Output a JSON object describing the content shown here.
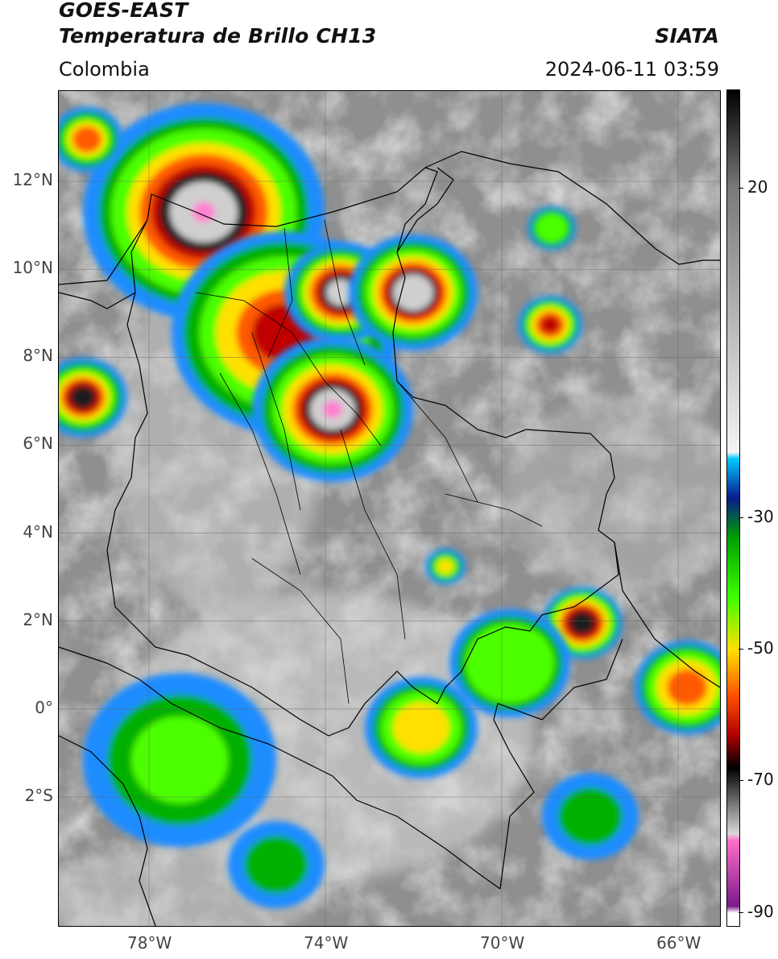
{
  "header": {
    "title_line1": "GOES-EAST",
    "title_line2": "Temperatura de Brillo CH13",
    "region": "Colombia",
    "org": "SIATA",
    "datetime": "2024-06-11 03:59"
  },
  "map": {
    "lon_labels": [
      "78°W",
      "74°W",
      "70°W",
      "66°W"
    ],
    "lat_labels": [
      "12°N",
      "10°N",
      "8°N",
      "6°N",
      "4°N",
      "2°N",
      "0°",
      "2°S"
    ],
    "lon_values": [
      -78,
      -74,
      -70,
      -66
    ],
    "lat_values": [
      12,
      10,
      8,
      6,
      4,
      2,
      0,
      -2
    ],
    "lon_range": [
      -80,
      -65
    ],
    "lat_range": [
      -5,
      14
    ]
  },
  "colorbar": {
    "labels": [
      "20",
      "-30",
      "-50",
      "-70",
      "-90"
    ],
    "values": [
      20,
      -30,
      -50,
      -70,
      -90
    ],
    "range": [
      -92,
      35
    ],
    "stops": [
      {
        "v": 35,
        "c": "#000000"
      },
      {
        "v": 20,
        "c": "#7a7a7a"
      },
      {
        "v": -20,
        "c": "#f4f4f4"
      },
      {
        "v": -21,
        "c": "#00c8ff"
      },
      {
        "v": -27,
        "c": "#0a1a8c"
      },
      {
        "v": -33,
        "c": "#00a000"
      },
      {
        "v": -42,
        "c": "#3cff00"
      },
      {
        "v": -50,
        "c": "#ffe000"
      },
      {
        "v": -57,
        "c": "#ff5000"
      },
      {
        "v": -63,
        "c": "#b00000"
      },
      {
        "v": -68,
        "c": "#000000"
      },
      {
        "v": -78,
        "c": "#d8d8d8"
      },
      {
        "v": -79,
        "c": "#ff6ec7"
      },
      {
        "v": -89,
        "c": "#7a1a8c"
      },
      {
        "v": -90,
        "c": "#ffffff"
      },
      {
        "v": -92,
        "c": "#ffffff"
      }
    ]
  }
}
